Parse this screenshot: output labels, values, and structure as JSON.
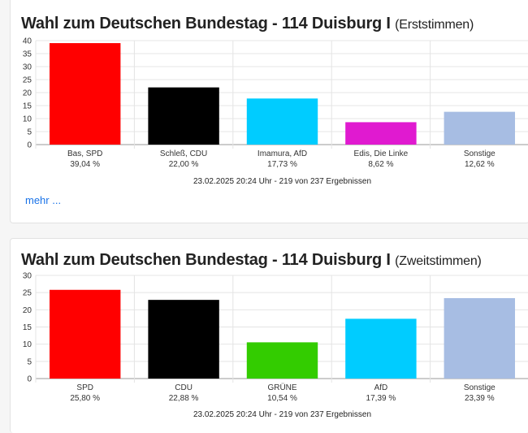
{
  "chart_data": [
    {
      "type": "bar",
      "title": "Wahl zum Deutschen Bundestag - 114 Duisburg I",
      "subtitle": "(Erststimmen)",
      "categories": [
        "Bas, SPD",
        "Schleß, CDU",
        "Imamura, AfD",
        "Edis, Die Linke",
        "Sonstige"
      ],
      "values": [
        39.04,
        22.0,
        17.73,
        8.62,
        12.62
      ],
      "value_labels": [
        "39,04 %",
        "22,00 %",
        "17,73 %",
        "8,62 %",
        "12,62 %"
      ],
      "colors": [
        "#ff0000",
        "#000000",
        "#00ccff",
        "#e01ad0",
        "#a7bde3"
      ],
      "ylim": [
        0,
        40
      ],
      "yticks": [
        0,
        5,
        10,
        15,
        20,
        25,
        30,
        35,
        40
      ],
      "grid": true,
      "footer": "23.02.2025 20:24 Uhr - 219 von 237 Ergebnissen",
      "more_label": "mehr ..."
    },
    {
      "type": "bar",
      "title": "Wahl zum Deutschen Bundestag - 114 Duisburg I",
      "subtitle": "(Zweitstimmen)",
      "categories": [
        "SPD",
        "CDU",
        "GRÜNE",
        "AfD",
        "Sonstige"
      ],
      "values": [
        25.8,
        22.88,
        10.54,
        17.39,
        23.39
      ],
      "value_labels": [
        "25,80 %",
        "22,88 %",
        "10,54 %",
        "17,39 %",
        "23,39 %"
      ],
      "colors": [
        "#ff0000",
        "#000000",
        "#33cc00",
        "#00ccff",
        "#a7bde3"
      ],
      "ylim": [
        0,
        30
      ],
      "yticks": [
        0,
        5,
        10,
        15,
        20,
        25,
        30
      ],
      "grid": true,
      "footer": "23.02.2025 20:24 Uhr - 219 von 237 Ergebnissen"
    }
  ]
}
